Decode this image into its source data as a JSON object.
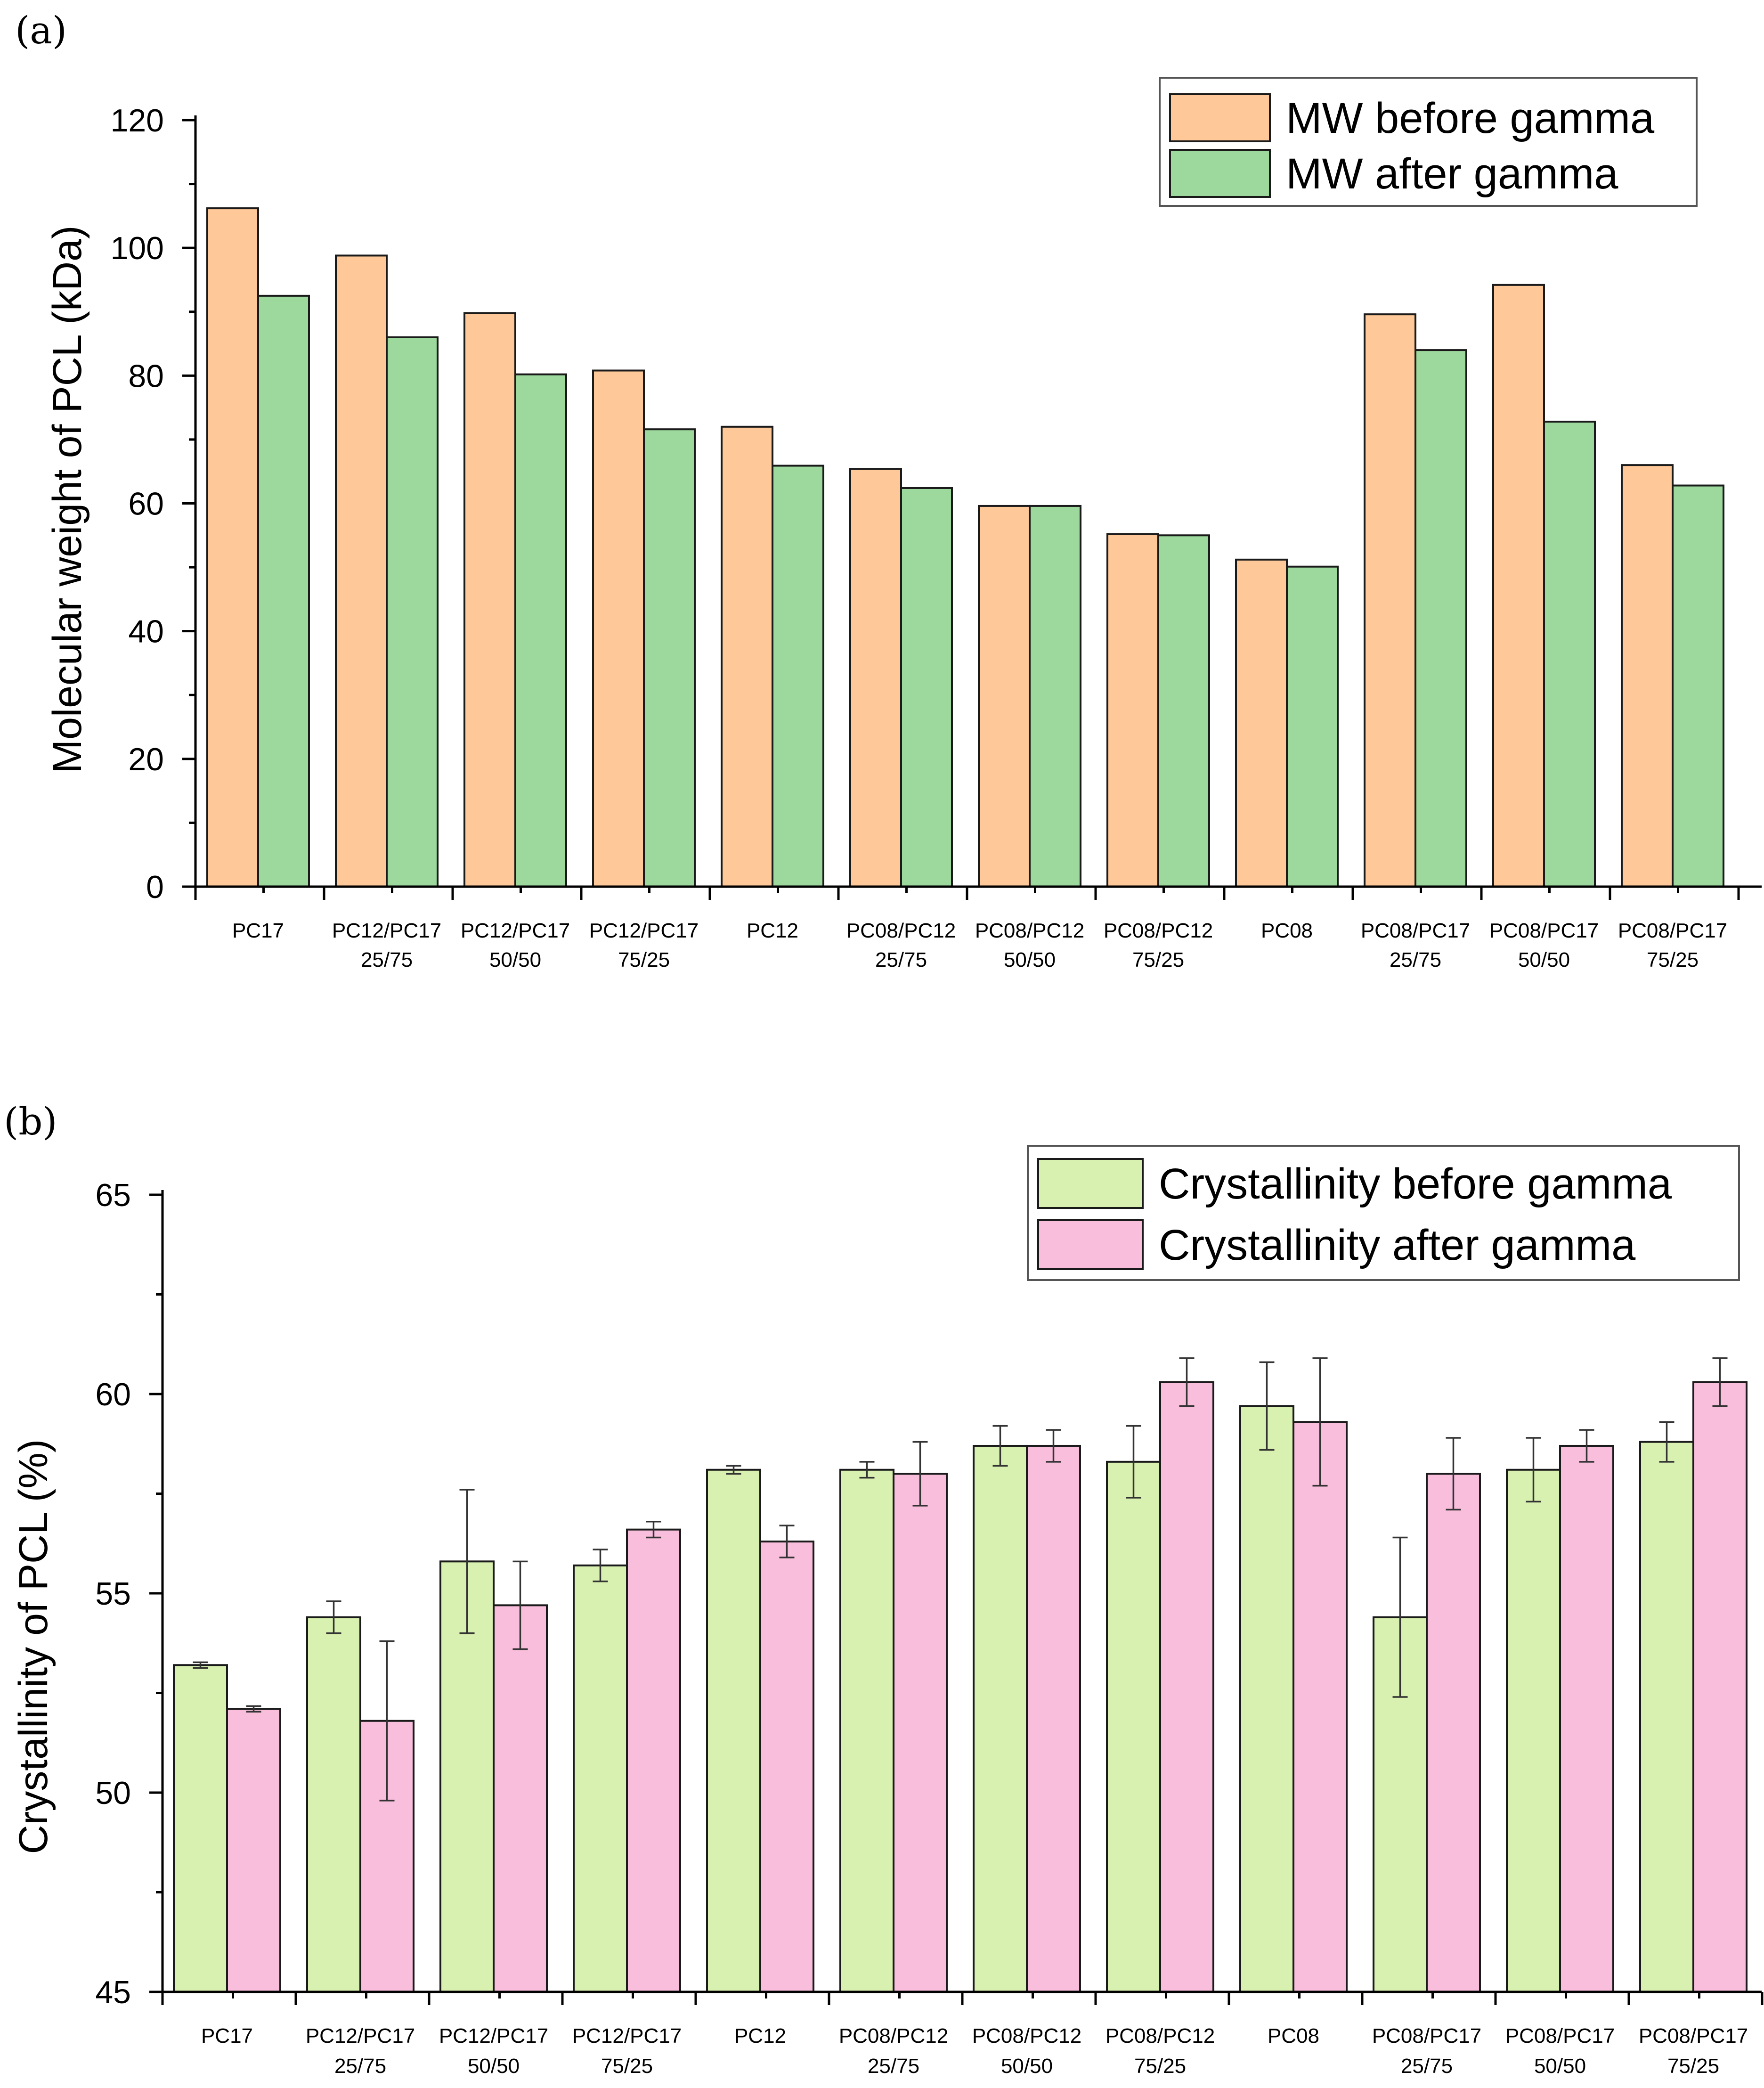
{
  "chart_data": [
    {
      "panel_label": "(a)",
      "type": "bar",
      "ylabel": "Molecular weight of PCL (kDa)",
      "xlabel": "",
      "ylim": [
        0,
        120
      ],
      "yticks": [
        0,
        20,
        40,
        60,
        80,
        100,
        120
      ],
      "categories": [
        [
          "PC17"
        ],
        [
          "PC12/PC17",
          "25/75"
        ],
        [
          "PC12/PC17",
          "50/50"
        ],
        [
          "PC12/PC17",
          "75/25"
        ],
        [
          "PC12"
        ],
        [
          "PC08/PC12",
          "25/75"
        ],
        [
          "PC08/PC12",
          "50/50"
        ],
        [
          "PC08/PC12",
          "75/25"
        ],
        [
          "PC08"
        ],
        [
          "PC08/PC17",
          "25/75"
        ],
        [
          "PC08/PC17",
          "50/50"
        ],
        [
          "PC08/PC17",
          "75/25"
        ]
      ],
      "series": [
        {
          "name": "MW before gamma",
          "color": "#FFC898",
          "values": [
            106.2,
            98.8,
            89.8,
            80.8,
            72.0,
            65.4,
            59.6,
            55.2,
            51.2,
            89.6,
            94.2,
            66.0
          ]
        },
        {
          "name": "MW after gamma",
          "color": "#9DD89D",
          "values": [
            92.5,
            86.0,
            80.2,
            71.6,
            65.9,
            62.4,
            59.6,
            55.0,
            50.1,
            84.0,
            72.8,
            62.8
          ]
        }
      ],
      "legend_position": "top-right"
    },
    {
      "panel_label": "(b)",
      "type": "bar",
      "ylabel": "Crystallinity of PCL (%)",
      "xlabel": "",
      "ylim": [
        45,
        65
      ],
      "yticks": [
        45,
        50,
        55,
        60,
        65
      ],
      "categories": [
        [
          "PC17"
        ],
        [
          "PC12/PC17",
          "25/75"
        ],
        [
          "PC12/PC17",
          "50/50"
        ],
        [
          "PC12/PC17",
          "75/25"
        ],
        [
          "PC12"
        ],
        [
          "PC08/PC12",
          "25/75"
        ],
        [
          "PC08/PC12",
          "50/50"
        ],
        [
          "PC08/PC12",
          "75/25"
        ],
        [
          "PC08"
        ],
        [
          "PC08/PC17",
          "25/75"
        ],
        [
          "PC08/PC17",
          "50/50"
        ],
        [
          "PC08/PC17",
          "75/25"
        ]
      ],
      "series": [
        {
          "name": "Crystallinity before gamma",
          "color": "#D8F0B0",
          "values": [
            53.2,
            54.4,
            55.8,
            55.7,
            58.1,
            58.1,
            58.7,
            58.3,
            59.7,
            54.4,
            58.1,
            58.8
          ],
          "errors": [
            0.07,
            0.4,
            1.8,
            0.4,
            0.1,
            0.2,
            0.5,
            0.9,
            1.1,
            2.0,
            0.8,
            0.5
          ]
        },
        {
          "name": "Crystallinity after gamma",
          "color": "#F8BEDC",
          "values": [
            52.1,
            51.8,
            54.7,
            56.6,
            56.3,
            58.0,
            58.7,
            60.3,
            59.3,
            58.0,
            58.7,
            60.3
          ],
          "errors": [
            0.07,
            2.0,
            1.1,
            0.2,
            0.4,
            0.8,
            0.4,
            0.6,
            1.6,
            0.9,
            0.4,
            0.6
          ]
        }
      ],
      "legend_position": "top-right"
    }
  ]
}
